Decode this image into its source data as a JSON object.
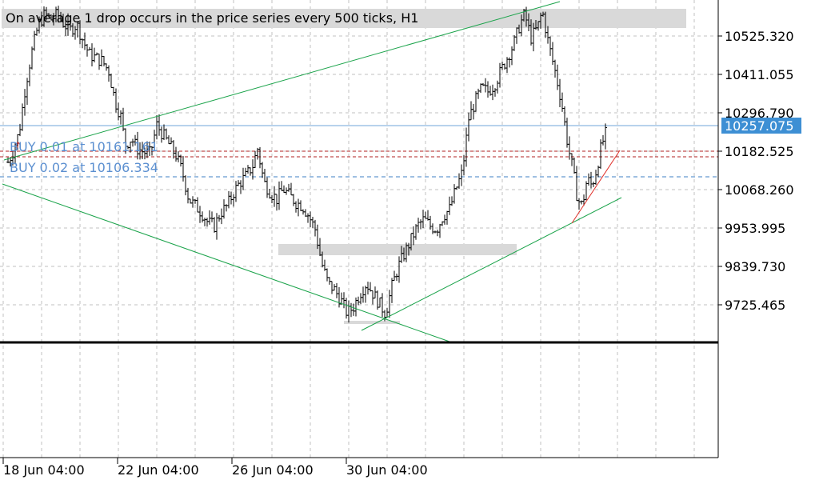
{
  "banner": {
    "text": "On average 1 drop occurs in the price series every 500 ticks, H1"
  },
  "price_axis": {
    "labels": [
      "10525.320",
      "10411.055",
      "10296.790",
      "10182.525",
      "10068.260",
      "9953.995",
      "9839.730",
      "9725.465"
    ],
    "current_price": "10257.075",
    "current_price_color": "#3d8fd4"
  },
  "time_axis": {
    "labels": [
      "18 Jun 04:00",
      "22 Jun 04:00",
      "26 Jun 04:00",
      "30 Jun 04:00"
    ]
  },
  "orders": [
    {
      "label": "BUY 0.01 at 10161.161",
      "price": 10161.161
    },
    {
      "label": "BUY 0.02 at 10106.334",
      "price": 10106.334
    }
  ],
  "colors": {
    "grid": "#c0c0c0",
    "candle": "#000000",
    "trendline": "#1aa34a",
    "order_line": "#b22222",
    "order_label": "#5b8fd0",
    "highlight_zone": "#d9d9d9",
    "current_price_line": "#6fa6d8"
  },
  "chart_data": {
    "type": "candlestick",
    "title": "",
    "timeframe": "H1",
    "ylim": [
      9650,
      10620
    ],
    "y_ticks": [
      10525.32,
      10411.055,
      10296.79,
      10182.525,
      10068.26,
      9953.995,
      9839.73,
      9725.465
    ],
    "x_tick_labels": [
      "18 Jun 04:00",
      "22 Jun 04:00",
      "26 Jun 04:00",
      "30 Jun 04:00"
    ],
    "grid": true,
    "close_path": [
      [
        0,
        10130
      ],
      [
        10,
        10180
      ],
      [
        18,
        10240
      ],
      [
        26,
        10380
      ],
      [
        34,
        10480
      ],
      [
        42,
        10560
      ],
      [
        50,
        10590
      ],
      [
        58,
        10575
      ],
      [
        66,
        10590
      ],
      [
        74,
        10560
      ],
      [
        82,
        10545
      ],
      [
        90,
        10560
      ],
      [
        98,
        10510
      ],
      [
        106,
        10470
      ],
      [
        114,
        10460
      ],
      [
        122,
        10450
      ],
      [
        130,
        10420
      ],
      [
        138,
        10330
      ],
      [
        146,
        10280
      ],
      [
        150,
        10200
      ],
      [
        158,
        10220
      ],
      [
        166,
        10190
      ],
      [
        174,
        10180
      ],
      [
        182,
        10175
      ],
      [
        190,
        10260
      ],
      [
        198,
        10230
      ],
      [
        206,
        10200
      ],
      [
        214,
        10170
      ],
      [
        222,
        10120
      ],
      [
        230,
        10040
      ],
      [
        238,
        10020
      ],
      [
        246,
        10000
      ],
      [
        254,
        9970
      ],
      [
        262,
        9960
      ],
      [
        270,
        10000
      ],
      [
        278,
        10020
      ],
      [
        286,
        10060
      ],
      [
        294,
        10090
      ],
      [
        302,
        10110
      ],
      [
        310,
        10140
      ],
      [
        316,
        10190
      ],
      [
        324,
        10090
      ],
      [
        332,
        10060
      ],
      [
        340,
        10040
      ],
      [
        348,
        10070
      ],
      [
        356,
        10050
      ],
      [
        364,
        10030
      ],
      [
        372,
        10020
      ],
      [
        380,
        9990
      ],
      [
        388,
        9950
      ],
      [
        396,
        9850
      ],
      [
        404,
        9790
      ],
      [
        412,
        9770
      ],
      [
        420,
        9740
      ],
      [
        428,
        9700
      ],
      [
        436,
        9720
      ],
      [
        444,
        9760
      ],
      [
        452,
        9790
      ],
      [
        460,
        9760
      ],
      [
        468,
        9730
      ],
      [
        476,
        9700
      ],
      [
        484,
        9780
      ],
      [
        492,
        9840
      ],
      [
        500,
        9880
      ],
      [
        508,
        9920
      ],
      [
        516,
        9960
      ],
      [
        524,
        9980
      ],
      [
        532,
        9960
      ],
      [
        540,
        9950
      ],
      [
        548,
        9990
      ],
      [
        556,
        10010
      ],
      [
        564,
        10070
      ],
      [
        572,
        10120
      ],
      [
        580,
        10280
      ],
      [
        588,
        10330
      ],
      [
        596,
        10370
      ],
      [
        604,
        10360
      ],
      [
        612,
        10380
      ],
      [
        620,
        10420
      ],
      [
        628,
        10460
      ],
      [
        636,
        10500
      ],
      [
        644,
        10560
      ],
      [
        650,
        10590
      ],
      [
        658,
        10520
      ],
      [
        666,
        10550
      ],
      [
        672,
        10600
      ],
      [
        680,
        10500
      ],
      [
        688,
        10420
      ],
      [
        696,
        10330
      ],
      [
        704,
        10200
      ],
      [
        710,
        10130
      ],
      [
        716,
        10040
      ],
      [
        722,
        10020
      ],
      [
        728,
        10100
      ],
      [
        734,
        10080
      ],
      [
        740,
        10130
      ],
      [
        746,
        10200
      ],
      [
        752,
        10240
      ]
    ]
  }
}
